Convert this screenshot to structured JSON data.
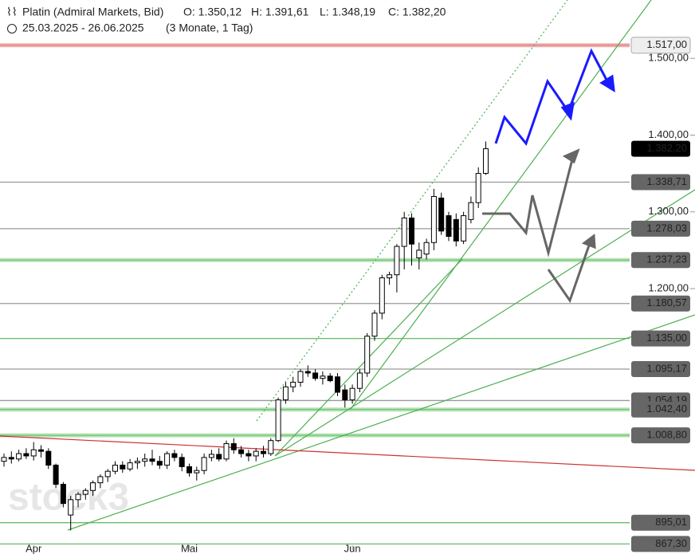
{
  "chart_data": {
    "type": "candlestick",
    "title": "Platin (Admiral Markets, Bid)",
    "ohlc_labels": [
      "O: 1.350,12",
      "H: 1.391,61",
      "L: 1.348,19",
      "C: 1.382,20"
    ],
    "date_range": "25.03.2025 - 26.06.2025",
    "period": "(3 Monate, 1 Tag)",
    "watermark": "stock3",
    "categories": [
      null,
      null,
      null,
      null,
      "Apr",
      null,
      null,
      null,
      null,
      null,
      null,
      null,
      null,
      null,
      null,
      null,
      null,
      null,
      null,
      null,
      null,
      null,
      null,
      null,
      null,
      "Mai",
      null,
      null,
      null,
      null,
      null,
      null,
      null,
      null,
      null,
      null,
      null,
      null,
      null,
      null,
      null,
      null,
      null,
      null,
      null,
      null,
      null,
      "Jun",
      null,
      null,
      null,
      null,
      null,
      null,
      null,
      null,
      null,
      null,
      null,
      null,
      null,
      null,
      null,
      null,
      null,
      null
    ],
    "open": [
      975,
      980,
      978,
      985,
      982,
      990,
      988,
      970,
      945,
      905,
      925,
      932,
      937,
      947,
      955,
      962,
      970,
      965,
      973,
      975,
      978,
      975,
      970,
      985,
      980,
      968,
      960,
      963,
      980,
      984,
      978,
      998,
      990,
      985,
      982,
      988,
      985,
      1002,
      1055,
      1072,
      1078,
      1092,
      1090,
      1083,
      1086,
      1085,
      1068,
      1055,
      1070,
      1090,
      1138,
      1168,
      1214,
      1218,
      1255,
      1292,
      1240,
      1245,
      1260,
      1318,
      1295,
      1290,
      1262,
      1290,
      1312,
      1350.12
    ],
    "high": [
      985,
      988,
      990,
      992,
      1000,
      996,
      992,
      972,
      948,
      930,
      935,
      940,
      950,
      958,
      965,
      975,
      975,
      978,
      980,
      985,
      990,
      982,
      988,
      990,
      985,
      972,
      968,
      985,
      990,
      992,
      1002,
      1005,
      995,
      990,
      992,
      995,
      1005,
      1058,
      1078,
      1085,
      1095,
      1100,
      1095,
      1092,
      1090,
      1090,
      1075,
      1075,
      1095,
      1142,
      1172,
      1218,
      1222,
      1258,
      1300,
      1298,
      1260,
      1265,
      1330,
      1325,
      1300,
      1298,
      1300,
      1320,
      1358,
      1391.61
    ],
    "low": [
      968,
      972,
      975,
      978,
      976,
      980,
      965,
      940,
      915,
      885,
      915,
      925,
      930,
      940,
      948,
      958,
      960,
      962,
      965,
      968,
      970,
      965,
      965,
      975,
      962,
      955,
      950,
      958,
      975,
      975,
      975,
      985,
      980,
      975,
      975,
      980,
      982,
      1000,
      1050,
      1065,
      1072,
      1085,
      1080,
      1075,
      1078,
      1060,
      1045,
      1050,
      1065,
      1085,
      1132,
      1160,
      1205,
      1195,
      1225,
      1230,
      1225,
      1238,
      1250,
      1270,
      1262,
      1255,
      1258,
      1285,
      1305,
      1348.19
    ],
    "close": [
      980,
      978,
      985,
      982,
      990,
      988,
      970,
      945,
      920,
      925,
      932,
      937,
      947,
      955,
      962,
      970,
      965,
      973,
      975,
      978,
      975,
      970,
      985,
      980,
      968,
      960,
      963,
      980,
      984,
      978,
      998,
      990,
      985,
      982,
      988,
      985,
      1002,
      1055,
      1072,
      1078,
      1092,
      1090,
      1083,
      1086,
      1080,
      1065,
      1055,
      1070,
      1090,
      1138,
      1168,
      1214,
      1218,
      1255,
      1292,
      1258,
      1250,
      1260,
      1320,
      1275,
      1268,
      1262,
      1295,
      1312,
      1350,
      1382.2
    ],
    "ylim": [
      849,
      1576
    ],
    "yticks": [
      {
        "value": 1200,
        "label": "1.200,00"
      },
      {
        "value": 1300,
        "label": "1.300,00"
      },
      {
        "value": 1400,
        "label": "1.400,00"
      },
      {
        "value": 1500,
        "label": "1.500,00"
      }
    ],
    "levels": [
      {
        "value": 1517,
        "label": "1.517,00",
        "style": "light",
        "color": "#f0b0b0"
      },
      {
        "value": 1382.2,
        "label": "1.382,20",
        "style": "current",
        "color": null
      },
      {
        "value": 1338.71,
        "label": "1.338,71",
        "style": "dark",
        "color": "#999999"
      },
      {
        "value": 1278.03,
        "label": "1.278,03",
        "style": "dark",
        "color": "#999999"
      },
      {
        "value": 1237.23,
        "label": "1.237,23",
        "style": "dark",
        "color": "#b5e3b5"
      },
      {
        "value": 1180.57,
        "label": "1.180,57",
        "style": "dark",
        "color": "#999999"
      },
      {
        "value": 1135,
        "label": "1.135,00",
        "style": "dark",
        "color": "#66bb66"
      },
      {
        "value": 1095.17,
        "label": "1.095,17",
        "style": "dark",
        "color": "#999999"
      },
      {
        "value": 1054.19,
        "label": "1.054,19",
        "style": "dark",
        "color": "#999999"
      },
      {
        "value": 1042.4,
        "label": "1.042,40",
        "style": "dark",
        "color": "#b5e3b5"
      },
      {
        "value": 1008.8,
        "label": "1.008,80",
        "style": "dark",
        "color": "#b5e3b5"
      },
      {
        "value": 895.01,
        "label": "895,01",
        "style": "dark",
        "color": "#66bb66"
      },
      {
        "value": 867.3,
        "label": "867,30",
        "style": "dark",
        "color": "#66bb66"
      }
    ]
  }
}
